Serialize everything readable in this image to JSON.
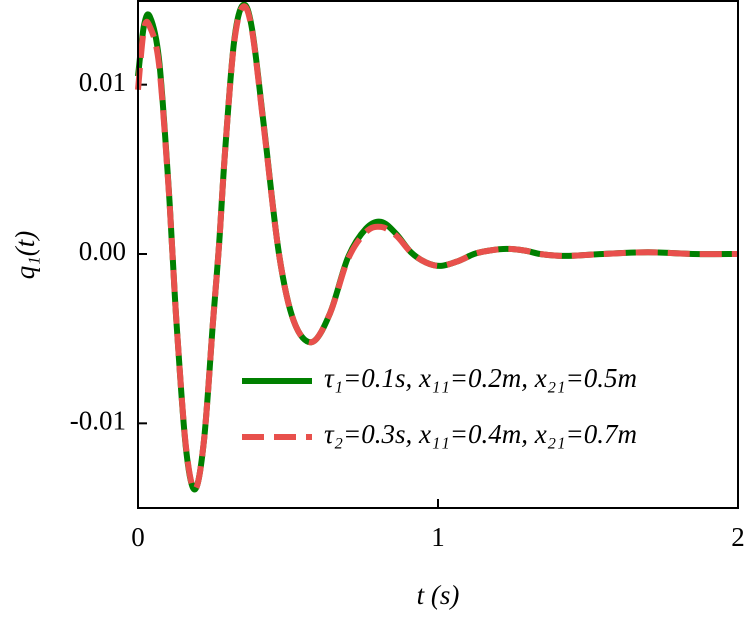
{
  "chart_data": {
    "type": "line",
    "x_label": "t (s)",
    "y_label": "q₁(t)",
    "x": [
      0,
      0.02,
      0.04,
      0.07,
      0.1,
      0.115,
      0.13,
      0.16,
      0.19,
      0.22,
      0.25,
      0.27,
      0.29,
      0.32,
      0.35,
      0.38,
      0.42,
      0.47,
      0.52,
      0.58,
      0.64,
      0.7,
      0.76,
      0.81,
      0.86,
      0.91,
      0.96,
      1.01,
      1.07,
      1.12,
      1.17,
      1.23,
      1.29,
      1.34,
      1.4,
      1.45,
      1.55,
      1.7,
      1.85,
      2.0
    ],
    "series": [
      {
        "name": "τ₁=0.1s, x₁₁=0.2m, x₂₁=0.5m",
        "color": "#008000",
        "dash": false,
        "values": [
          0.0105,
          0.0135,
          0.014,
          0.0115,
          0.0045,
          0.0,
          -0.0045,
          -0.0115,
          -0.0139,
          -0.011,
          -0.004,
          0.0005,
          0.006,
          0.0125,
          0.0147,
          0.0133,
          0.0075,
          0.0,
          -0.004,
          -0.0052,
          -0.0035,
          -0.0002,
          0.0015,
          0.0019,
          0.0012,
          0.0001,
          -0.0005,
          -0.0007,
          -0.0004,
          0.0,
          0.0002,
          0.0003,
          0.0002,
          0.0,
          -0.0001,
          -0.0001,
          0.0,
          0.0001,
          0.0,
          0.0
        ]
      },
      {
        "name": "τ₂=0.3s, x₁₁=0.4m, x₂₁=0.7m",
        "color": "#e8504c",
        "dash": true,
        "values": [
          0.0097,
          0.0133,
          0.0134,
          0.0112,
          0.0044,
          0.0,
          -0.0045,
          -0.0114,
          -0.0139,
          -0.011,
          -0.004,
          0.0005,
          0.006,
          0.0124,
          0.0146,
          0.0132,
          0.0074,
          0.0,
          -0.004,
          -0.0052,
          -0.0035,
          -0.0003,
          0.0013,
          0.0016,
          0.0011,
          0.0001,
          -0.0005,
          -0.0007,
          -0.0004,
          0.0,
          0.0002,
          0.0003,
          0.0002,
          0.0,
          -0.0001,
          -0.0001,
          0.0,
          0.0001,
          0.0,
          0.0
        ]
      }
    ],
    "xlim": [
      0,
      2
    ],
    "xticks": [
      0,
      1,
      2
    ],
    "ylim": [
      -0.015,
      0.015
    ],
    "yticks": [
      -0.01,
      {
        "value": 0,
        "label": "0.00"
      },
      0.01
    ],
    "legend": "lower right"
  }
}
